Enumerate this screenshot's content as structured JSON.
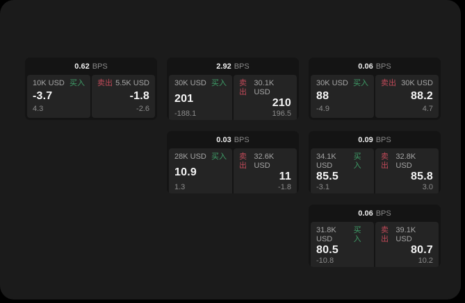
{
  "labels": {
    "bps": "BPS",
    "buy": "买入",
    "sell": "卖出"
  },
  "colors": {
    "surface": "#1b1b1b",
    "card": "#141414",
    "tile": "#242424",
    "buy": "#3f9e68",
    "sell": "#c14a59"
  },
  "cards": [
    {
      "bps": "0.62",
      "buy": {
        "size": "10K USD",
        "price": "-3.7",
        "delta": "4.3"
      },
      "sell": {
        "size": "5.5K USD",
        "price": "-1.8",
        "delta": "-2.6"
      }
    },
    {
      "bps": "2.92",
      "buy": {
        "size": "30K USD",
        "price": "201",
        "delta": "-188.1"
      },
      "sell": {
        "size": "30.1K USD",
        "price": "210",
        "delta": "196.5"
      }
    },
    {
      "bps": "0.06",
      "buy": {
        "size": "30K USD",
        "price": "88",
        "delta": "-4.9"
      },
      "sell": {
        "size": "30K USD",
        "price": "88.2",
        "delta": "4.7"
      }
    },
    {
      "bps": "0.03",
      "buy": {
        "size": "28K USD",
        "price": "10.9",
        "delta": "1.3"
      },
      "sell": {
        "size": "32.6K USD",
        "price": "11",
        "delta": "-1.8"
      }
    },
    {
      "bps": "0.09",
      "buy": {
        "size": "34.1K USD",
        "price": "85.5",
        "delta": "-3.1"
      },
      "sell": {
        "size": "32.8K USD",
        "price": "85.8",
        "delta": "3.0"
      }
    },
    {
      "bps": "0.06",
      "buy": {
        "size": "31.8K USD",
        "price": "80.5",
        "delta": "-10.8"
      },
      "sell": {
        "size": "39.1K USD",
        "price": "80.7",
        "delta": "10.2"
      }
    }
  ]
}
